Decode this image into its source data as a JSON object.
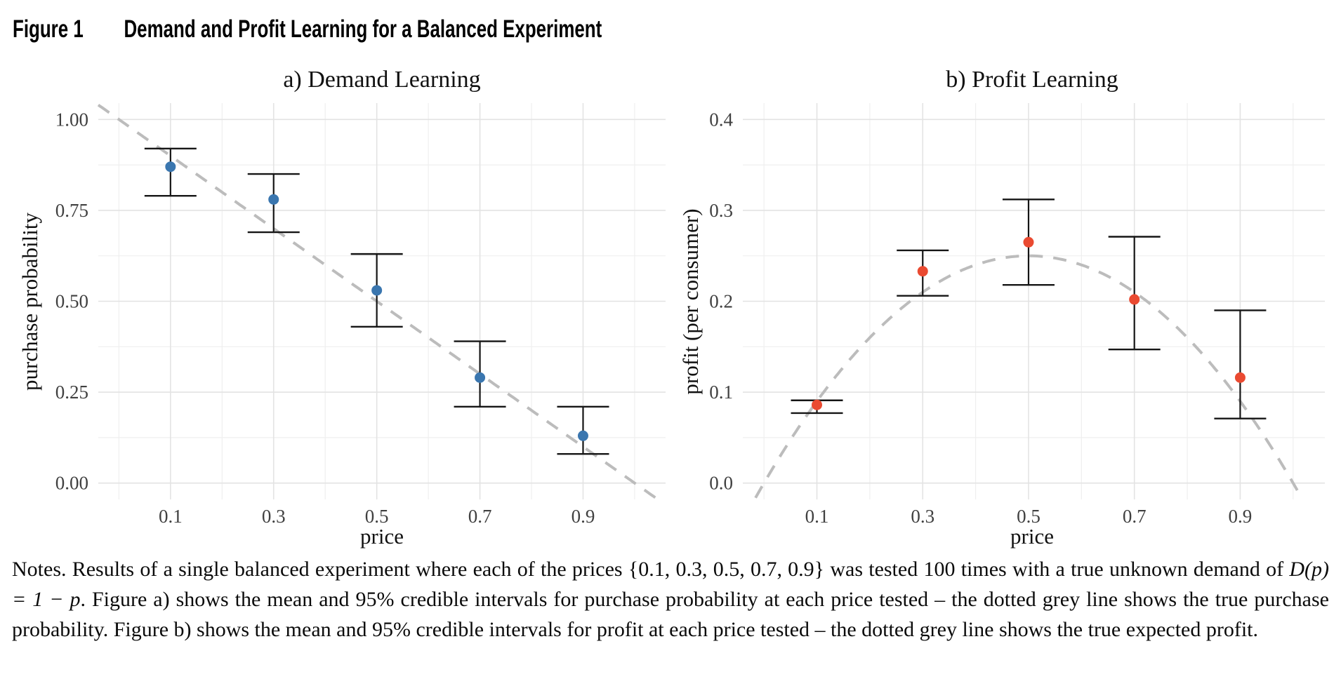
{
  "header": {
    "figure_label": "Figure 1",
    "title": "Demand and Profit Learning for a Balanced Experiment"
  },
  "colors": {
    "grid_major": "#e3e3e3",
    "grid_minor": "#efefef",
    "true_line_grey": "#bcbcbc",
    "error_bar_black": "#151515",
    "demand_point_blue": "#3a76af",
    "profit_point_red": "#ea4a31",
    "tick_text_grey": "#404040"
  },
  "chart_data": [
    {
      "id": "demand",
      "type": "scatter",
      "title": "a) Demand Learning",
      "xlabel": "price",
      "ylabel": "purchase probability",
      "x": [
        0.1,
        0.3,
        0.5,
        0.7,
        0.9
      ],
      "means": [
        0.87,
        0.78,
        0.53,
        0.29,
        0.13
      ],
      "ci_lower": [
        0.79,
        0.69,
        0.43,
        0.21,
        0.08
      ],
      "ci_upper": [
        0.92,
        0.85,
        0.63,
        0.39,
        0.21
      ],
      "true_curve": "D(p) = 1 - p (true purchase probability, dotted grey line)",
      "point_color": "#3a76af",
      "x_ticks": [
        0.1,
        0.3,
        0.5,
        0.7,
        0.9
      ],
      "x_tick_labels": [
        "0.1",
        "0.3",
        "0.5",
        "0.7",
        "0.9"
      ],
      "y_ticks": [
        0,
        0.25,
        0.5,
        0.75,
        1
      ],
      "y_tick_labels": [
        "0.00",
        "0.25",
        "0.50",
        "0.75",
        "1.00"
      ],
      "xlim": [
        -0.04,
        1.06
      ],
      "ylim": [
        -0.045,
        1.045
      ],
      "grid": true,
      "legend": false
    },
    {
      "id": "profit",
      "type": "scatter",
      "title": "b) Profit Learning",
      "xlabel": "price",
      "ylabel": "profit (per consumer)",
      "x": [
        0.1,
        0.3,
        0.5,
        0.7,
        0.9
      ],
      "means": [
        0.086,
        0.233,
        0.265,
        0.202,
        0.116
      ],
      "ci_lower": [
        0.077,
        0.206,
        0.218,
        0.147,
        0.071
      ],
      "ci_upper": [
        0.091,
        0.256,
        0.312,
        0.271,
        0.19
      ],
      "true_curve": "p(1 - p) (true expected profit, dotted grey line)",
      "point_color": "#ea4a31",
      "x_ticks": [
        0.1,
        0.3,
        0.5,
        0.7,
        0.9
      ],
      "x_tick_labels": [
        "0.1",
        "0.3",
        "0.5",
        "0.7",
        "0.9"
      ],
      "y_ticks": [
        0,
        0.1,
        0.2,
        0.3,
        0.4
      ],
      "y_tick_labels": [
        "0.0",
        "0.1",
        "0.2",
        "0.3",
        "0.4"
      ],
      "xlim": [
        -0.04,
        1.06
      ],
      "ylim": [
        -0.018,
        0.418
      ],
      "grid": true,
      "legend": false
    }
  ],
  "notes": {
    "part1": "Notes. Results of a single balanced experiment where each of the prices {0.1, 0.3, 0.5, 0.7, 0.9} was tested 100 times with a true unknown demand of ",
    "math": "D(p) = 1 − p",
    "part2": ". Figure a) shows the mean and 95% credible intervals for purchase probability at each price tested – the dotted grey line shows the true purchase probability. Figure b) shows the mean and 95% credible intervals for profit at each price tested – the dotted grey line shows the true expected profit."
  }
}
